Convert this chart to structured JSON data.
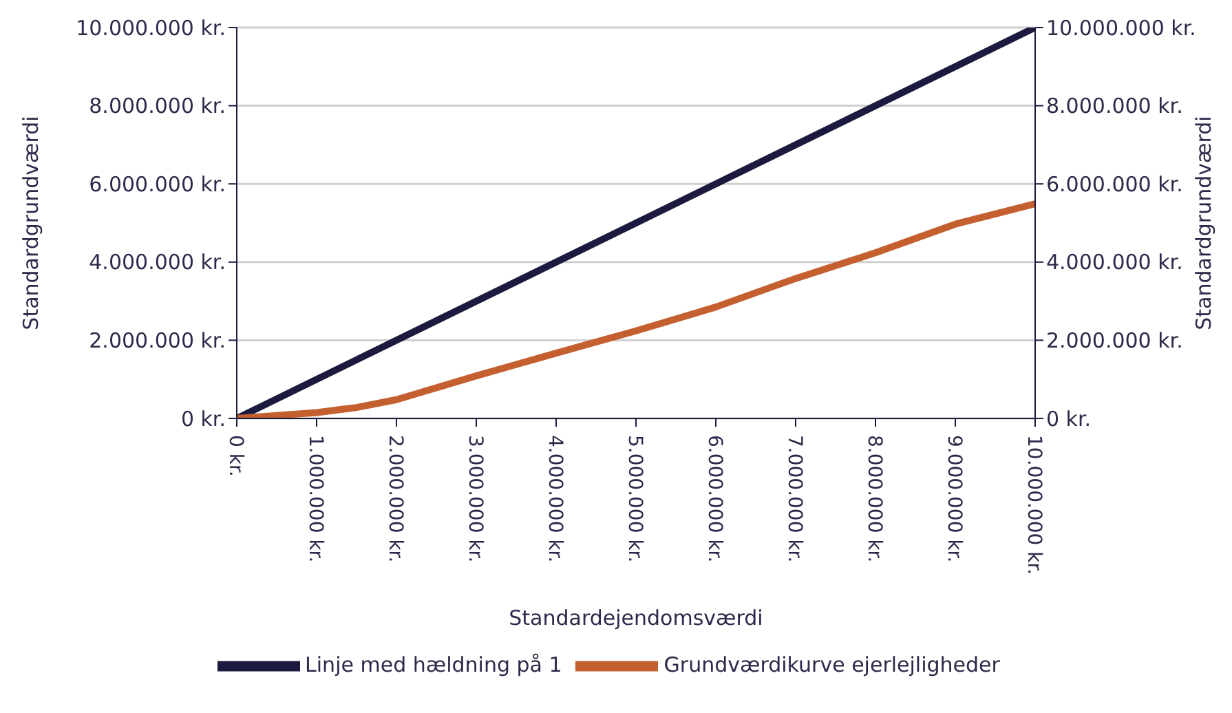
{
  "chart_data": {
    "type": "line",
    "xlabel": "Standardejendomsværdi",
    "ylabel": "Standardgrundværdi",
    "y2label": "Standardgrundværdi",
    "x": [
      0,
      1000000,
      1500000,
      2000000,
      3000000,
      4000000,
      5000000,
      6000000,
      7000000,
      8000000,
      9000000,
      10000000
    ],
    "series": [
      {
        "name": "Linje med hældning på 1",
        "color": "#1c1a3e",
        "x": [
          0,
          10000000
        ],
        "values": [
          0,
          10000000
        ]
      },
      {
        "name": "Grundværdikurve ejerlejligheder",
        "color": "#c45f30",
        "values": [
          0,
          150000,
          280000,
          480000,
          1090000,
          1670000,
          2240000,
          2850000,
          3580000,
          4240000,
          4970000,
          5490000
        ]
      }
    ],
    "xlim": [
      0,
      10000000
    ],
    "ylim": [
      0,
      10000000
    ],
    "y2lim": [
      0,
      10000000
    ],
    "xticks": [
      {
        "value": 0,
        "label": "0 kr."
      },
      {
        "value": 1000000,
        "label": "1.000.000 kr."
      },
      {
        "value": 2000000,
        "label": "2.000.000 kr."
      },
      {
        "value": 3000000,
        "label": "3.000.000 kr."
      },
      {
        "value": 4000000,
        "label": "4.000.000 kr."
      },
      {
        "value": 5000000,
        "label": "5.000.000 kr."
      },
      {
        "value": 6000000,
        "label": "6.000.000 kr."
      },
      {
        "value": 7000000,
        "label": "7.000.000 kr."
      },
      {
        "value": 8000000,
        "label": "8.000.000 kr."
      },
      {
        "value": 9000000,
        "label": "9.000.000 kr."
      },
      {
        "value": 10000000,
        "label": "10.000.000 kr."
      }
    ],
    "yticks": [
      {
        "value": 0,
        "label": "0 kr."
      },
      {
        "value": 2000000,
        "label": "2.000.000 kr."
      },
      {
        "value": 4000000,
        "label": "4.000.000 kr."
      },
      {
        "value": 6000000,
        "label": "6.000.000 kr."
      },
      {
        "value": 8000000,
        "label": "8.000.000 kr."
      },
      {
        "value": 10000000,
        "label": "10.000.000 kr."
      }
    ],
    "y2ticks": [
      {
        "value": 0,
        "label": "0 kr."
      },
      {
        "value": 2000000,
        "label": "2.000.000 kr."
      },
      {
        "value": 4000000,
        "label": "4.000.000 kr."
      },
      {
        "value": 6000000,
        "label": "6.000.000 kr."
      },
      {
        "value": 8000000,
        "label": "8.000.000 kr."
      },
      {
        "value": 10000000,
        "label": "10.000.000 kr."
      }
    ],
    "grid": "y",
    "legend": "bottom",
    "marker": "none",
    "line_style": "solid"
  }
}
